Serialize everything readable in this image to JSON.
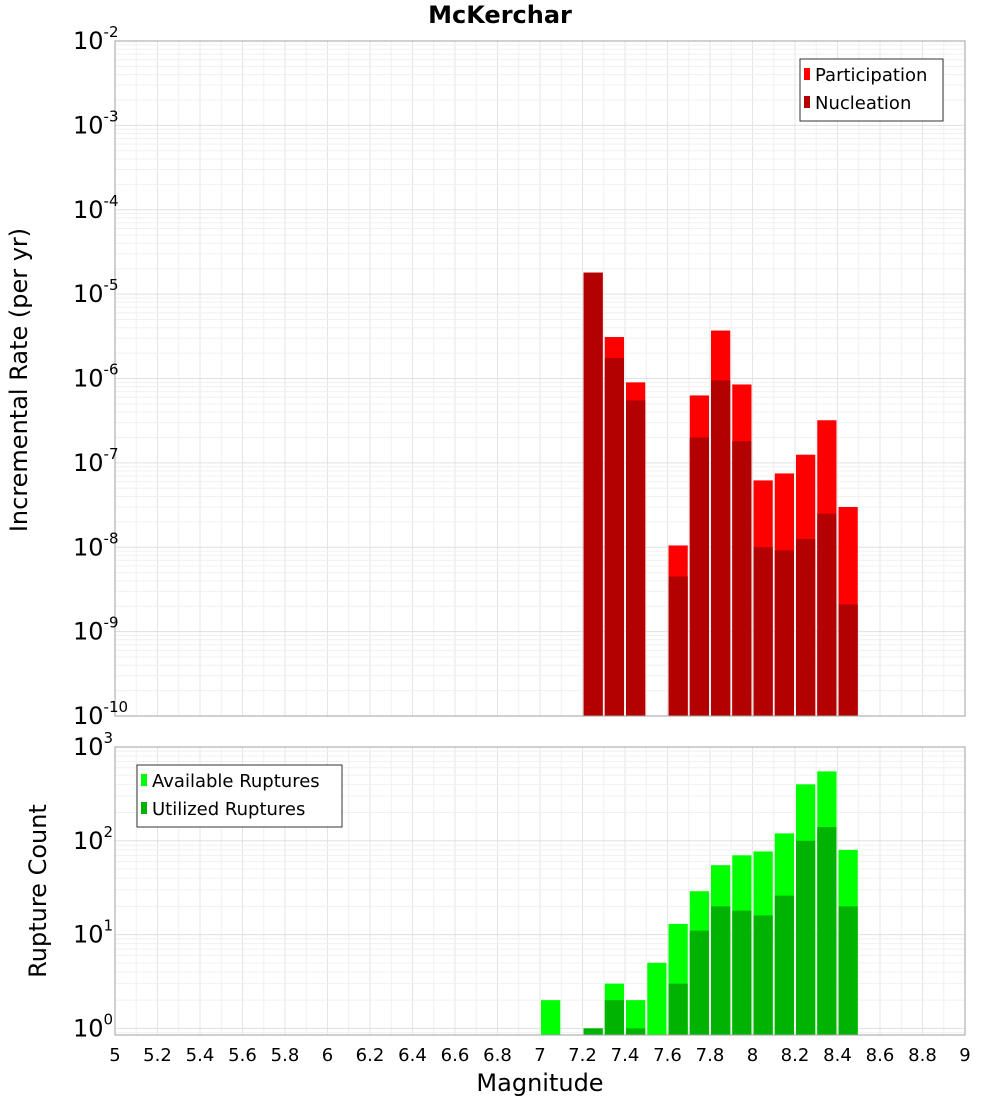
{
  "chart_data": {
    "title": "McKerchar",
    "xlabel": "Magnitude",
    "x_range": [
      5,
      9
    ],
    "x_ticks": [
      "5",
      "5.2",
      "5.4",
      "5.6",
      "5.8",
      "6",
      "6.2",
      "6.4",
      "6.6",
      "6.8",
      "7",
      "7.2",
      "7.4",
      "7.6",
      "7.8",
      "8",
      "8.2",
      "8.4",
      "8.6",
      "8.8",
      "9"
    ],
    "bin_width": 0.1,
    "panels": [
      {
        "type": "bar",
        "ylabel": "Incremental Rate (per yr)",
        "y_scale": "log",
        "ylim": [
          1e-10,
          0.01
        ],
        "y_ticks": [
          {
            "base": "10",
            "exp": "-10"
          },
          {
            "base": "10",
            "exp": "-9"
          },
          {
            "base": "10",
            "exp": "-8"
          },
          {
            "base": "10",
            "exp": "-7"
          },
          {
            "base": "10",
            "exp": "-6"
          },
          {
            "base": "10",
            "exp": "-5"
          },
          {
            "base": "10",
            "exp": "-4"
          },
          {
            "base": "10",
            "exp": "-3"
          },
          {
            "base": "10",
            "exp": "-2"
          }
        ],
        "legend_position": "top-right",
        "x": [
          7.25,
          7.35,
          7.45,
          7.65,
          7.75,
          7.85,
          7.95,
          8.05,
          8.15,
          8.25,
          8.35,
          8.45
        ],
        "series": [
          {
            "name": "Participation",
            "color": "#ff0000",
            "values": [
              1.8e-05,
              3.1e-06,
              9e-07,
              1.05e-08,
              6.3e-07,
              3.7e-06,
              8.5e-07,
              6.2e-08,
              7.5e-08,
              1.25e-07,
              3.2e-07,
              3e-08
            ]
          },
          {
            "name": "Nucleation",
            "color": "#b30000",
            "values": [
              1.8e-05,
              1.75e-06,
              5.5e-07,
              4.5e-09,
              2e-07,
              9.5e-07,
              1.8e-07,
              1e-08,
              9.2e-09,
              1.25e-08,
              2.5e-08,
              2.1e-09
            ]
          }
        ]
      },
      {
        "type": "bar",
        "ylabel": "Rupture Count",
        "y_scale": "log",
        "ylim": [
          0.85,
          1000
        ],
        "y_ticks": [
          {
            "base": "10",
            "exp": "0"
          },
          {
            "base": "10",
            "exp": "1"
          },
          {
            "base": "10",
            "exp": "2"
          },
          {
            "base": "10",
            "exp": "3"
          }
        ],
        "legend_position": "top-left",
        "x": [
          7.05,
          7.25,
          7.35,
          7.45,
          7.55,
          7.65,
          7.75,
          7.85,
          7.95,
          8.05,
          8.15,
          8.25,
          8.35,
          8.45
        ],
        "series": [
          {
            "name": "Available Ruptures",
            "color": "#00ff00",
            "values": [
              2,
              1,
              3,
              2,
              5,
              13,
              29,
              55,
              70,
              77,
              120,
              400,
              550,
              80
            ]
          },
          {
            "name": "Utilized Ruptures",
            "color": "#00b300",
            "values": [
              0,
              1,
              2,
              1,
              0,
              3,
              11,
              20,
              18,
              16,
              26,
              100,
              140,
              20
            ]
          }
        ]
      }
    ]
  }
}
